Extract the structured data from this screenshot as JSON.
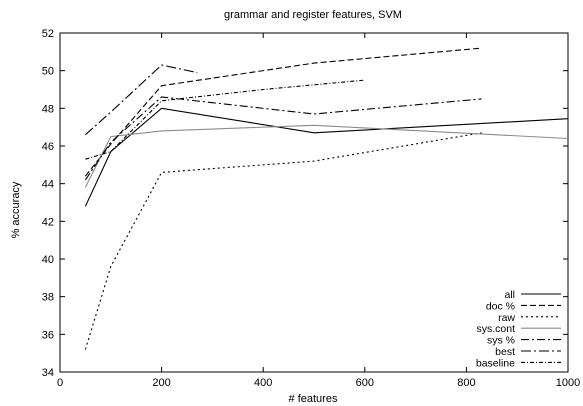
{
  "chart_data": {
    "type": "line",
    "title": "grammar and register features, SVM",
    "xlabel": "# features",
    "ylabel": "% accuracy",
    "xlim": [
      0,
      1000
    ],
    "ylim": [
      34,
      52
    ],
    "xticks": [
      0,
      200,
      400,
      600,
      800,
      1000
    ],
    "yticks": [
      34,
      36,
      38,
      40,
      42,
      44,
      46,
      48,
      50,
      52
    ],
    "grid": false,
    "legend_position": "bottom-right",
    "series": [
      {
        "name": "all",
        "dash": "solid",
        "color": "#000000",
        "points": [
          [
            50,
            42.8
          ],
          [
            100,
            45.7
          ],
          [
            200,
            48.0
          ],
          [
            500,
            46.7
          ],
          [
            1000,
            47.45
          ]
        ]
      },
      {
        "name": "doc %",
        "dash": "dashed",
        "color": "#000000",
        "points": [
          [
            50,
            44.4
          ],
          [
            100,
            46.1
          ],
          [
            200,
            49.2
          ],
          [
            500,
            50.4
          ],
          [
            830,
            51.2
          ]
        ]
      },
      {
        "name": "raw",
        "dash": "dotted-short",
        "color": "#000000",
        "points": [
          [
            50,
            35.2
          ],
          [
            100,
            39.6
          ],
          [
            200,
            44.6
          ],
          [
            500,
            45.2
          ],
          [
            830,
            46.7
          ]
        ]
      },
      {
        "name": "sys.cont",
        "dash": "solid-gray",
        "color": "#8a8a8a",
        "points": [
          [
            50,
            43.8
          ],
          [
            100,
            46.5
          ],
          [
            200,
            46.8
          ],
          [
            500,
            47.1
          ],
          [
            1000,
            46.4
          ]
        ]
      },
      {
        "name": "sys %",
        "dash": "dash-dot",
        "color": "#000000",
        "points": [
          [
            50,
            44.2
          ],
          [
            100,
            46.2
          ],
          [
            200,
            48.6
          ],
          [
            500,
            47.7
          ],
          [
            830,
            48.5
          ]
        ]
      },
      {
        "name": "best",
        "dash": "dash-dot-long",
        "color": "#000000",
        "points": [
          [
            50,
            46.6
          ],
          [
            100,
            47.8
          ],
          [
            200,
            50.3
          ],
          [
            270,
            49.9
          ]
        ]
      },
      {
        "name": "baseline",
        "dash": "dash-dot-dense",
        "color": "#000000",
        "points": [
          [
            50,
            45.3
          ],
          [
            100,
            45.7
          ],
          [
            200,
            48.4
          ],
          [
            400,
            49.0
          ],
          [
            600,
            49.5
          ]
        ]
      }
    ]
  }
}
